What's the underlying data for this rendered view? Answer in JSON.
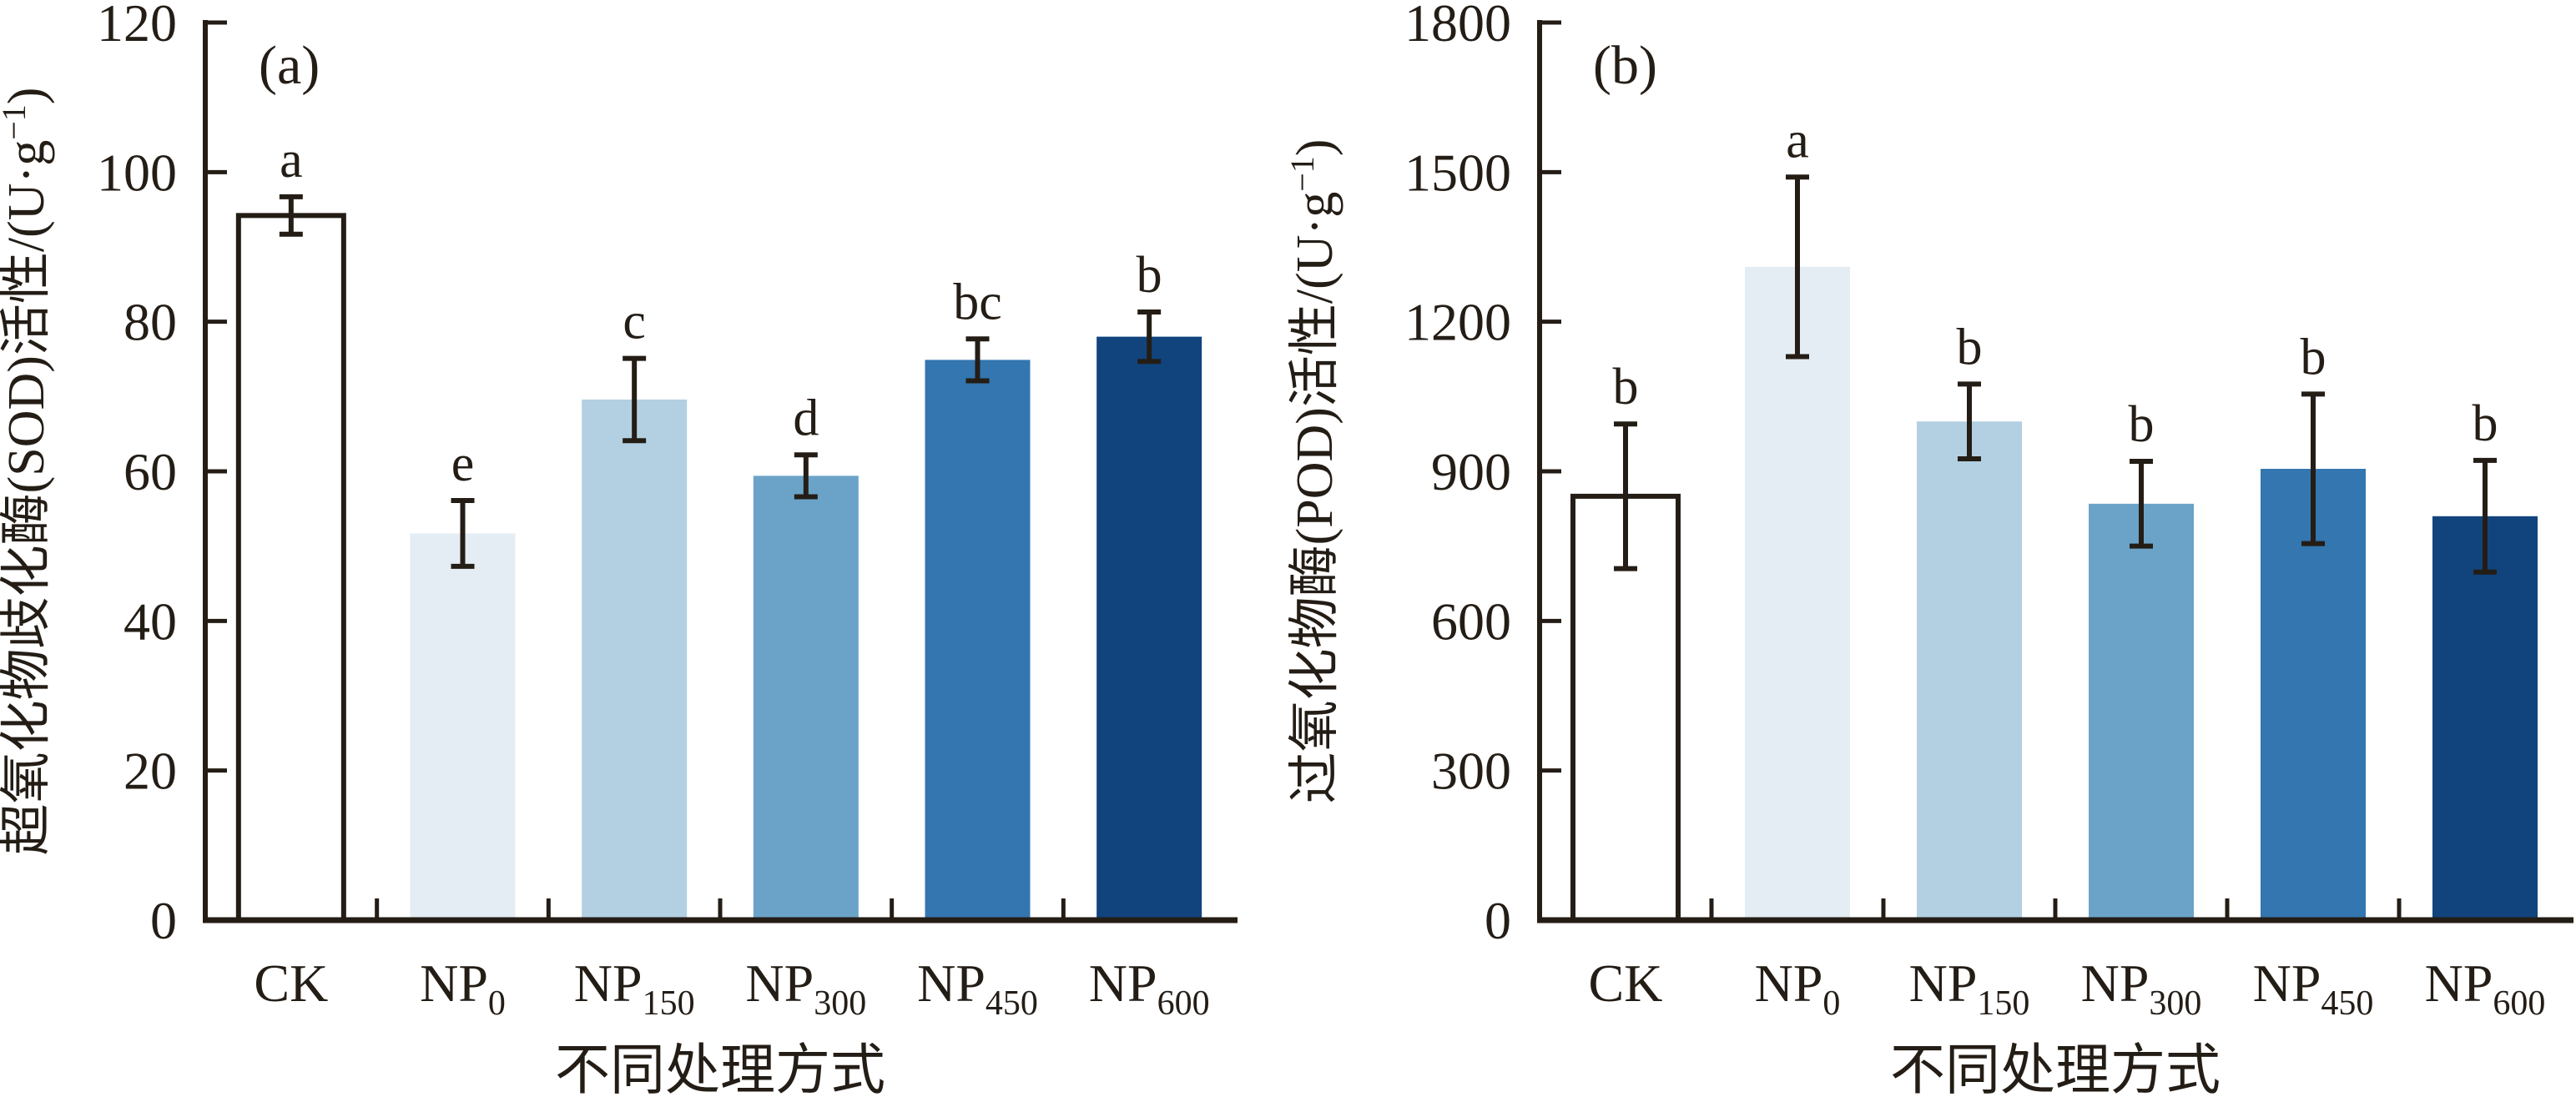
{
  "colors": {
    "ink": "#241d16",
    "background": "#ffffff",
    "bar_palette": [
      "#ffffff",
      "#e4edf3",
      "#b2d0e2",
      "#6ba3c8",
      "#3376b0",
      "#11447d"
    ]
  },
  "chart_data": [
    {
      "type": "bar",
      "panel": "(a)",
      "title": "",
      "ylabel": "超氧化物歧化酶(SOD)活性/(U·g⁻¹)",
      "ylabel_parts": {
        "main": "超氧化物歧化酶(SOD)活性/(U·g",
        "sup": "−1",
        "close": ")"
      },
      "xlabel": "不同处理方式",
      "categories": [
        "CK",
        "NP0",
        "NP150",
        "NP300",
        "NP450",
        "NP600"
      ],
      "categories_rich": [
        {
          "base": "CK",
          "sub": ""
        },
        {
          "base": "NP",
          "sub": "0"
        },
        {
          "base": "NP",
          "sub": "150"
        },
        {
          "base": "NP",
          "sub": "300"
        },
        {
          "base": "NP",
          "sub": "450"
        },
        {
          "base": "NP",
          "sub": "600"
        }
      ],
      "values": [
        94.2,
        51.7,
        69.6,
        59.4,
        74.9,
        78.0
      ],
      "errors": [
        2.5,
        4.4,
        5.5,
        2.8,
        2.8,
        3.3
      ],
      "sig_letters": [
        "a",
        "e",
        "c",
        "d",
        "bc",
        "b"
      ],
      "bar_colors": [
        "#ffffff",
        "#e4edf3",
        "#b2d0e2",
        "#6ba3c8",
        "#3376b0",
        "#11447d"
      ],
      "bar_outlined": [
        true,
        false,
        false,
        false,
        false,
        false
      ],
      "ylim": [
        0,
        120
      ],
      "yticks": [
        0,
        20,
        40,
        60,
        80,
        100,
        120
      ],
      "grid": false,
      "legend": "none"
    },
    {
      "type": "bar",
      "panel": "(b)",
      "title": "",
      "ylabel": "过氧化物酶(POD)活性/(U·g⁻¹)",
      "ylabel_parts": {
        "main": "过氧化物酶(POD)活性/(U·g",
        "sup": "−1",
        "close": ")"
      },
      "xlabel": "不同处理方式",
      "categories": [
        "CK",
        "NP0",
        "NP150",
        "NP300",
        "NP450",
        "NP600"
      ],
      "categories_rich": [
        {
          "base": "CK",
          "sub": ""
        },
        {
          "base": "NP",
          "sub": "0"
        },
        {
          "base": "NP",
          "sub": "150"
        },
        {
          "base": "NP",
          "sub": "300"
        },
        {
          "base": "NP",
          "sub": "450"
        },
        {
          "base": "NP",
          "sub": "600"
        }
      ],
      "values": [
        850,
        1310,
        1000,
        835,
        905,
        810
      ],
      "errors": [
        145,
        180,
        75,
        85,
        150,
        112
      ],
      "sig_letters": [
        "b",
        "a",
        "b",
        "b",
        "b",
        "b"
      ],
      "bar_colors": [
        "#ffffff",
        "#e4edf3",
        "#b2d0e2",
        "#6ba3c8",
        "#3376b0",
        "#11447d"
      ],
      "bar_outlined": [
        true,
        false,
        false,
        false,
        false,
        false
      ],
      "ylim": [
        0,
        1800
      ],
      "yticks": [
        0,
        300,
        600,
        900,
        1200,
        1500,
        1800
      ],
      "grid": false,
      "legend": "none"
    }
  ]
}
